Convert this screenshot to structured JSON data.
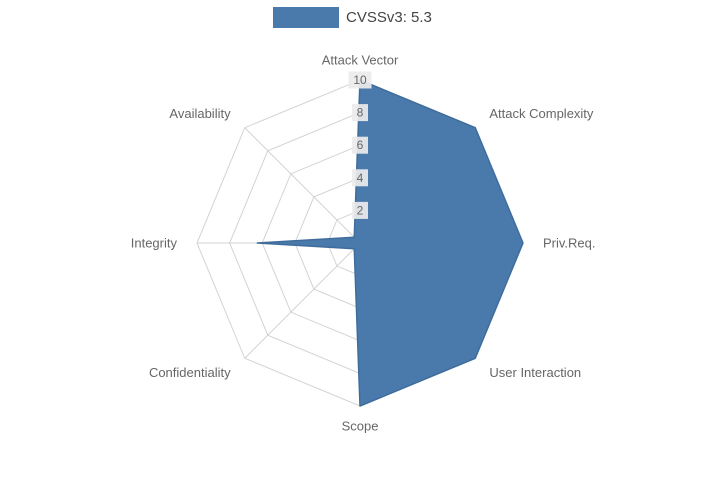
{
  "legend": {
    "label": "CVSSv3: 5.3"
  },
  "chart_data": {
    "type": "radar",
    "title": "",
    "categories": [
      "Attack Vector",
      "Attack Complexity",
      "Priv.Req.",
      "User Interaction",
      "Scope",
      "Confidentiality",
      "Integrity",
      "Availability"
    ],
    "series": [
      {
        "name": "CVSSv3: 5.3",
        "values": [
          10,
          10,
          10,
          10,
          10,
          0.5,
          6.3,
          0.5
        ]
      }
    ],
    "radial_ticks": [
      2,
      4,
      6,
      8,
      10
    ],
    "range": [
      0,
      10
    ],
    "grid": true,
    "legend_position": "top-center",
    "colors": {
      "fill": "#4a7aab",
      "stroke": "#3e6d9c",
      "grid": "#d3d3d3",
      "axis_label": "#666666",
      "tick_label": "#666666",
      "tick_bg": "#ebebeb",
      "legend_text": "#444444",
      "background": "#ffffff"
    }
  }
}
